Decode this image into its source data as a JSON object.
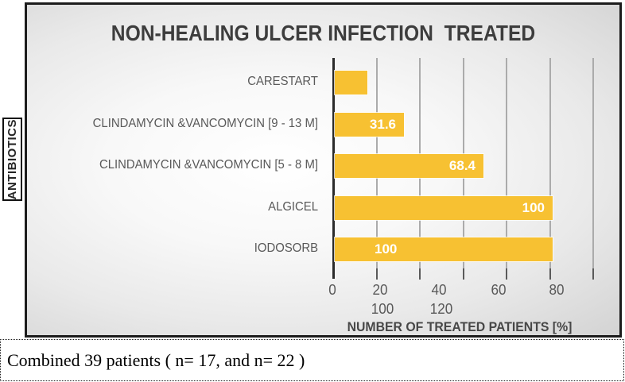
{
  "title": "NON-HEALING ULCER INFECTION  TREATED",
  "y_axis_label": "ANTIBIOTICS",
  "x_axis_title": "NUMBER OF TREATED PATIENTS [%]",
  "caption": "Combined 39 patients ( n= 17, and n= 22 )",
  "colors": {
    "bar": "#F7C132",
    "bar_value_text": "#FFFFFF",
    "title_text": "#3D3D3D",
    "category_text": "#595959",
    "gridline": "#ABABAB",
    "axis_line": "#2B2B2B"
  },
  "chart_data": {
    "type": "bar",
    "orientation": "horizontal",
    "title": "NON-HEALING ULCER INFECTION  TREATED",
    "xlabel": "NUMBER OF TREATED PATIENTS [%]",
    "ylabel": "ANTIBIOTICS",
    "categories": [
      "CARESTART",
      "CLINDAMYCIN &VANCOMYCIN [9 - 13 M]",
      "CLINDAMYCIN &VANCOMYCIN [5 - 8 M]",
      "ALGICEL",
      "IODOSORB"
    ],
    "values": [
      15,
      31.6,
      68.4,
      100,
      100
    ],
    "data_labels": [
      "",
      "31.6",
      "68.4",
      "100",
      "100"
    ],
    "data_label_positions": [
      "none",
      "end",
      "end",
      "end",
      "start"
    ],
    "xlim": [
      0,
      120
    ],
    "x_ticks_row1": [
      "0",
      "20",
      "40",
      "60",
      "80"
    ],
    "x_ticks_row2": [
      "100",
      "120"
    ],
    "gridlines": true,
    "legend": false
  }
}
